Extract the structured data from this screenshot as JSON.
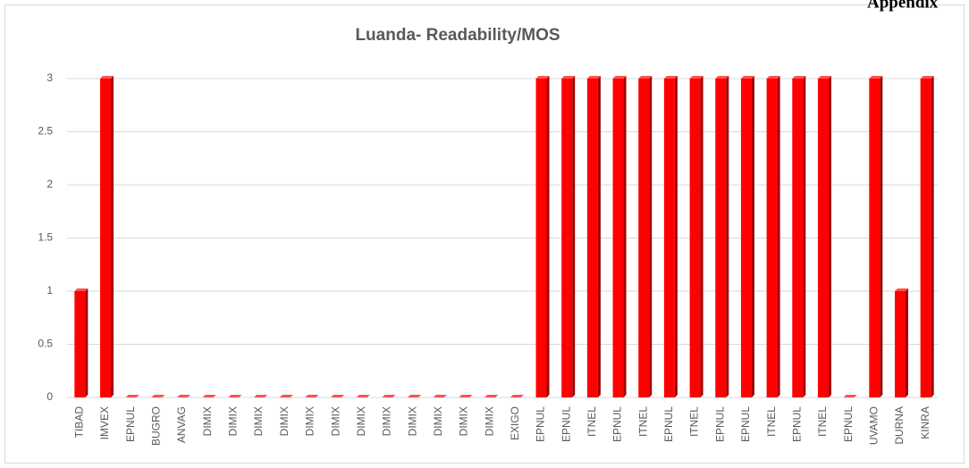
{
  "header": {
    "text": "Appendix"
  },
  "chart_data": {
    "type": "bar",
    "title": "Luanda- Readability/MOS",
    "categories": [
      "TIBAD",
      "IMVEX",
      "EPNUL",
      "BUGRO",
      "ANVAG",
      "DIMIX",
      "DIMIX",
      "DIMIX",
      "DIMIX",
      "DIMIX",
      "DIMIX",
      "DIMIX",
      "DIMIX",
      "DIMIX",
      "DIMIX",
      "DIMIX",
      "DIMIX",
      "EXIGO",
      "EPNUL",
      "EPNUL",
      "ITNEL",
      "EPNUL",
      "ITNEL",
      "EPNUL",
      "ITNEL",
      "EPNUL",
      "EPNUL",
      "ITNEL",
      "EPNUL",
      "ITNEL",
      "EPNUL",
      "UVAMO",
      "DURNA",
      "KINRA"
    ],
    "values": [
      1,
      3,
      0,
      0,
      0,
      0,
      0,
      0,
      0,
      0,
      0,
      0,
      0,
      0,
      0,
      0,
      0,
      0,
      3,
      3,
      3,
      3,
      3,
      3,
      3,
      3,
      3,
      3,
      3,
      3,
      0,
      3,
      1,
      3
    ],
    "color": "#ff0000",
    "ylim": [
      0,
      3
    ],
    "yticks": [
      0,
      0.5,
      1,
      1.5,
      2,
      2.5,
      3
    ],
    "grid": true
  }
}
